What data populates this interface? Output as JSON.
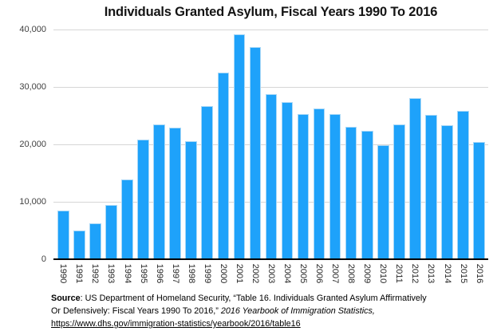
{
  "title": "Individuals Granted Asylum, Fiscal Years 1990 To 2016",
  "chart_data": {
    "type": "bar",
    "title": "Individuals Granted Asylum, Fiscal Years 1990 To 2016",
    "categories": [
      "1990",
      "1991",
      "1992",
      "1993",
      "1994",
      "1995",
      "1996",
      "1997",
      "1998",
      "1999",
      "2000",
      "2001",
      "2002",
      "2003",
      "2004",
      "2005",
      "2006",
      "2007",
      "2008",
      "2009",
      "2010",
      "2011",
      "2012",
      "2013",
      "2014",
      "2015",
      "2016"
    ],
    "values": [
      8472,
      5035,
      6307,
      9414,
      13836,
      20800,
      23533,
      22939,
      20507,
      26600,
      32450,
      39146,
      36894,
      28714,
      27321,
      25300,
      26300,
      25300,
      23000,
      22300,
      19800,
      23500,
      28000,
      25100,
      23300,
      25900,
      20455
    ],
    "xlabel": "",
    "ylabel": "",
    "ylim": [
      0,
      40000
    ],
    "yticks": [
      0,
      10000,
      20000,
      30000,
      40000
    ],
    "ytick_labels": [
      "0",
      "10,000",
      "20,000",
      "30,000",
      "40,000"
    ],
    "x_tick_rotation": 90,
    "grid": true,
    "legend": false,
    "bar_color": "#1EA2FA",
    "bar_border_color": "#A9D8F7",
    "gridline_color": "#D6D6D6",
    "baseline_color": "#000000"
  },
  "footer": {
    "source_label": "Source",
    "source_text": ": US Department of Homeland Security, “Table 16. Individuals Granted Asylum Affirmatively Or Defensively: Fiscal Years 1990 To 2016,” ",
    "source_italic": "2016 Yearbook of Immigration Statistics,",
    "source_link": "https://www.dhs.gov/immigration-statistics/yearbook/2016/table16"
  }
}
